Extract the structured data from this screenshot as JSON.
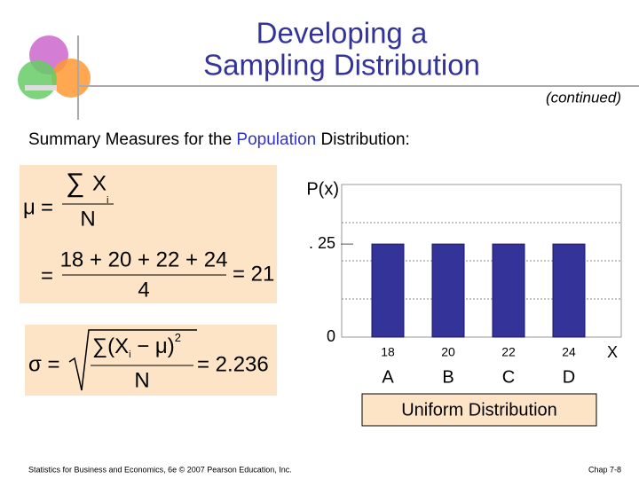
{
  "slide": {
    "title": [
      "Developing a",
      "Sampling Distribution"
    ],
    "continued": "(continued)",
    "subtitle": [
      "Summary Measures for the ",
      "Population",
      " Distribution:"
    ],
    "mean_formula": {
      "mu": "μ",
      "eq": "=",
      "sum": "∑",
      "x": "X",
      "sub": "i",
      "n": "N",
      "numerator": "18 + 20 + 22 + 24",
      "denominator": "4",
      "result": "= 21"
    },
    "sd_formula": {
      "sigma": "σ =",
      "numerator": "∑(X",
      "sub": "i",
      "rest": " − μ)",
      "sup": "2",
      "n": "N",
      "result": "= 2.236"
    },
    "footer": "Statistics for Business and Economics, 6e © 2007 Pearson Education, Inc.",
    "page": "Chap 7-8"
  },
  "chart_data": {
    "type": "bar",
    "ylabel": "P(x)",
    "xlabel": "X",
    "caption": "Uniform Distribution",
    "categories": [
      "18",
      "20",
      "22",
      "24"
    ],
    "letters": [
      "A",
      "B",
      "C",
      "D"
    ],
    "values": [
      0.25,
      0.25,
      0.25,
      0.25
    ],
    "color": "#333399",
    "ylim": [
      0,
      0.41
    ],
    "yticks": [
      0,
      {
        "value": 0.25,
        "label": ". 25"
      }
    ]
  }
}
